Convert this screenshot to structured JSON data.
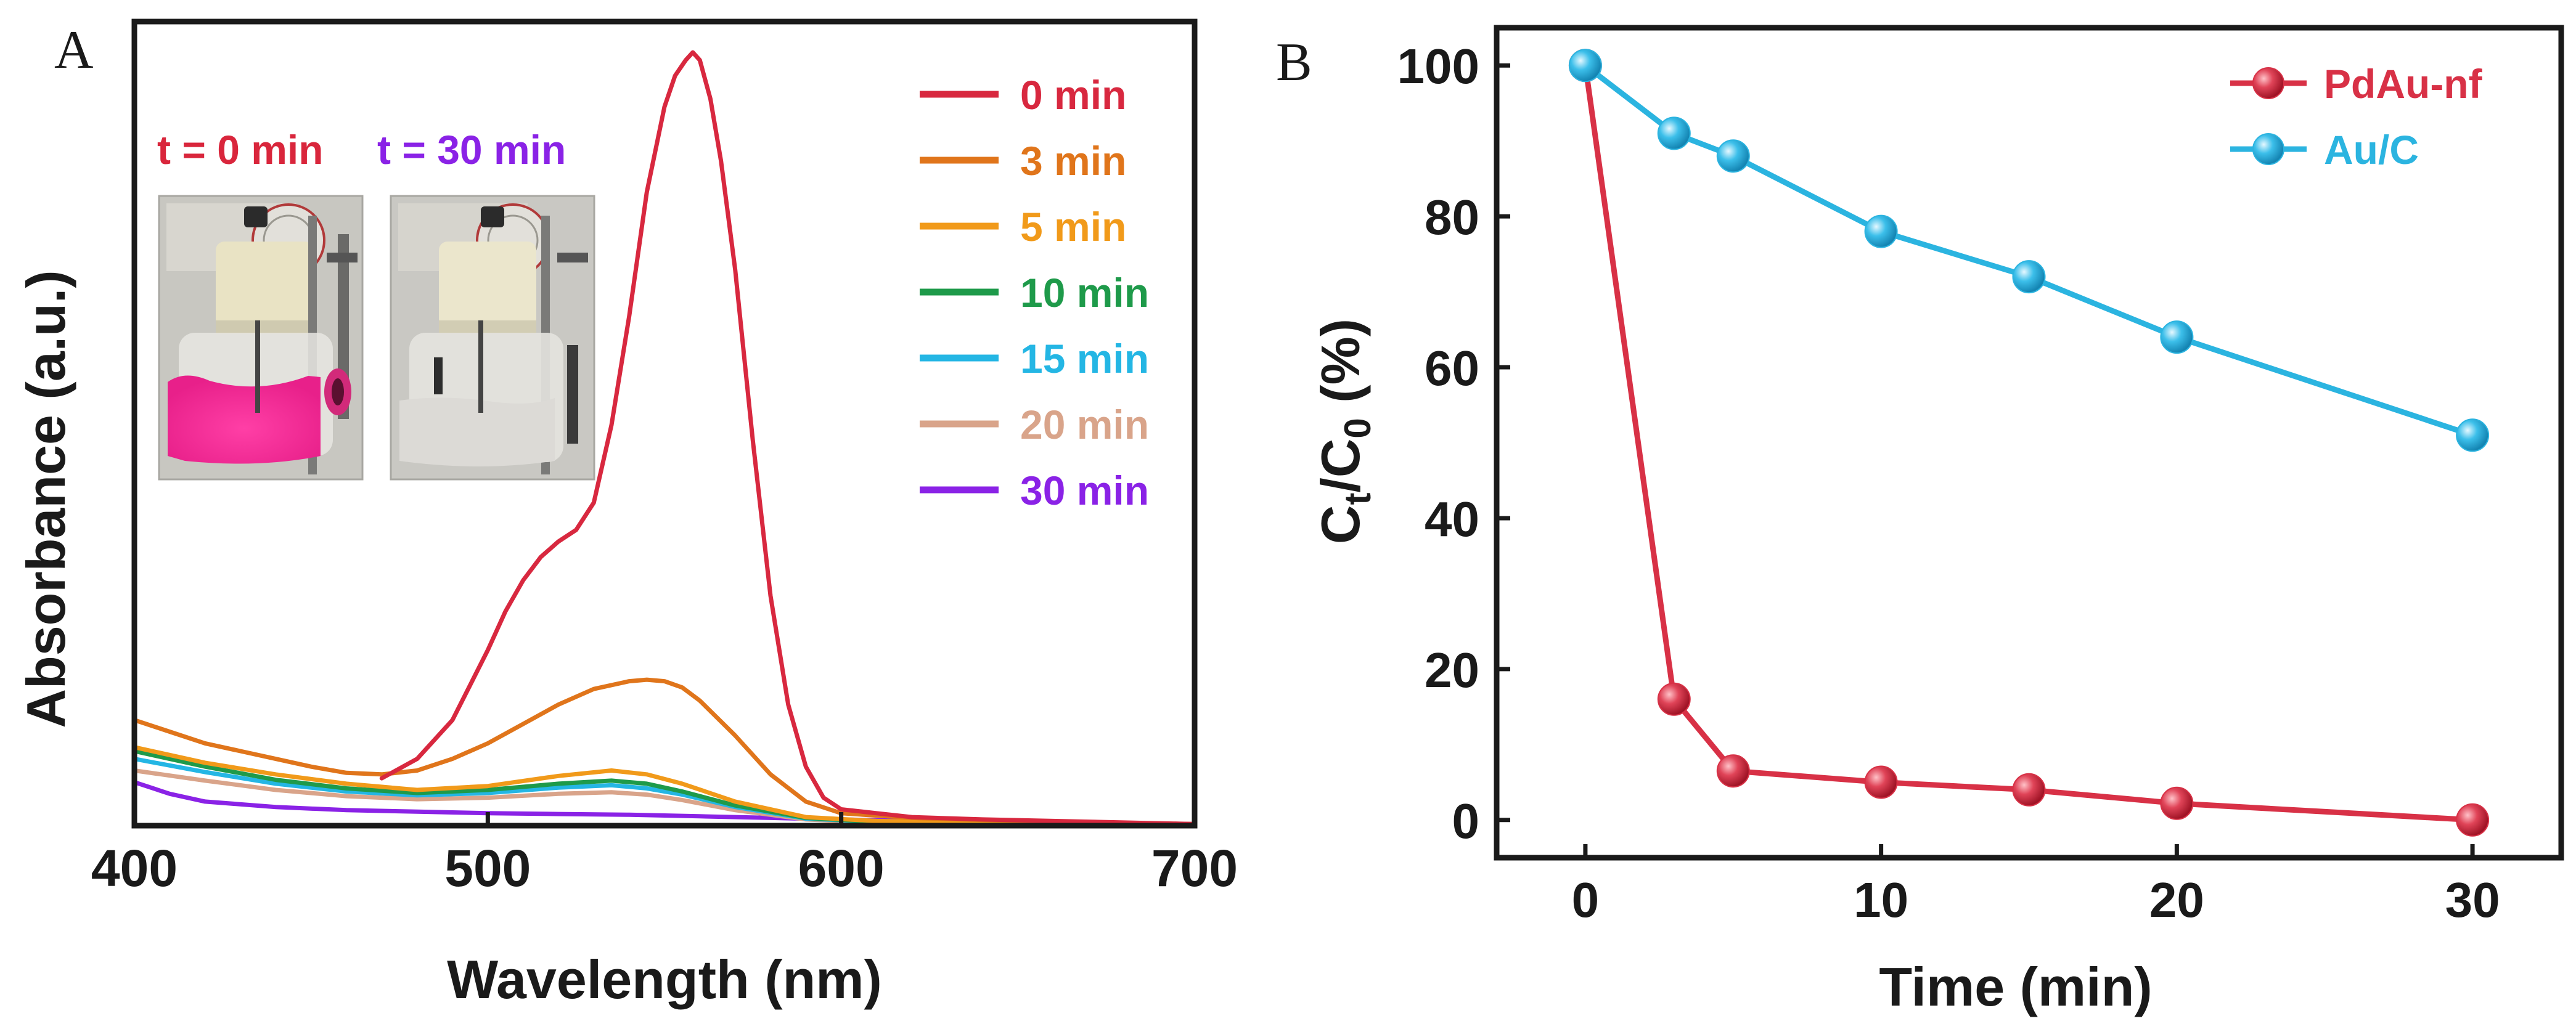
{
  "chart_data": [
    {
      "panel": "A",
      "type": "line",
      "xlabel": "Wavelength (nm)",
      "ylabel": "Absorbance (a.u.)",
      "xlim": [
        400,
        700
      ],
      "ylim": [
        0,
        1.0
      ],
      "xticks": [
        "400",
        "500",
        "600",
        "700"
      ],
      "inset": {
        "labels": [
          "t = 0 min",
          "t = 30 min"
        ],
        "colors": [
          "#d9263c",
          "#8a22e6"
        ]
      },
      "series": [
        {
          "name": "0 min",
          "color": "#d8283f",
          "x": [
            470,
            480,
            490,
            500,
            505,
            510,
            515,
            520,
            525,
            530,
            535,
            540,
            545,
            550,
            553,
            556,
            558,
            560,
            563,
            566,
            570,
            575,
            580,
            585,
            590,
            595,
            600,
            610,
            620,
            640,
            660,
            680,
            700
          ],
          "y": [
            0.065,
            0.09,
            0.14,
            0.23,
            0.28,
            0.32,
            0.35,
            0.37,
            0.385,
            0.42,
            0.52,
            0.66,
            0.82,
            0.93,
            0.97,
            0.99,
            1.0,
            0.99,
            0.94,
            0.86,
            0.72,
            0.5,
            0.3,
            0.16,
            0.08,
            0.04,
            0.025,
            0.02,
            0.015,
            0.012,
            0.01,
            0.008,
            0.006
          ]
        },
        {
          "name": "3 min",
          "color": "#e0751b",
          "x": [
            400,
            410,
            420,
            430,
            440,
            450,
            460,
            470,
            480,
            490,
            500,
            510,
            520,
            530,
            540,
            545,
            550,
            555,
            560,
            570,
            580,
            590,
            600,
            620,
            650,
            700
          ],
          "y": [
            0.14,
            0.125,
            0.11,
            0.1,
            0.09,
            0.08,
            0.072,
            0.07,
            0.075,
            0.09,
            0.11,
            0.135,
            0.16,
            0.18,
            0.19,
            0.192,
            0.19,
            0.182,
            0.165,
            0.12,
            0.07,
            0.035,
            0.02,
            0.014,
            0.01,
            0.006
          ]
        },
        {
          "name": "5 min",
          "color": "#f19a1a",
          "x": [
            400,
            420,
            440,
            460,
            480,
            500,
            520,
            535,
            545,
            555,
            570,
            590,
            610,
            640,
            700
          ],
          "y": [
            0.105,
            0.085,
            0.07,
            0.058,
            0.05,
            0.055,
            0.068,
            0.075,
            0.07,
            0.058,
            0.035,
            0.015,
            0.01,
            0.008,
            0.005
          ]
        },
        {
          "name": "10 min",
          "color": "#1e9a4a",
          "x": [
            400,
            420,
            440,
            460,
            480,
            500,
            520,
            535,
            545,
            555,
            570,
            590,
            610,
            640,
            700
          ],
          "y": [
            0.1,
            0.08,
            0.063,
            0.052,
            0.046,
            0.05,
            0.058,
            0.062,
            0.058,
            0.048,
            0.03,
            0.014,
            0.009,
            0.007,
            0.005
          ]
        },
        {
          "name": "15 min",
          "color": "#24b6e4",
          "x": [
            400,
            420,
            440,
            460,
            480,
            500,
            520,
            535,
            545,
            555,
            570,
            590,
            610,
            640,
            700
          ],
          "y": [
            0.09,
            0.073,
            0.058,
            0.048,
            0.043,
            0.046,
            0.053,
            0.056,
            0.052,
            0.044,
            0.028,
            0.013,
            0.009,
            0.007,
            0.005
          ]
        },
        {
          "name": "20 min",
          "color": "#d9a48a",
          "x": [
            400,
            420,
            440,
            460,
            480,
            500,
            520,
            535,
            545,
            555,
            570,
            590,
            610,
            640,
            700
          ],
          "y": [
            0.075,
            0.062,
            0.05,
            0.042,
            0.038,
            0.04,
            0.045,
            0.047,
            0.044,
            0.037,
            0.024,
            0.012,
            0.008,
            0.006,
            0.005
          ]
        },
        {
          "name": "30 min",
          "color": "#8a22e6",
          "x": [
            400,
            410,
            420,
            440,
            460,
            480,
            500,
            520,
            540,
            560,
            580,
            600,
            620,
            650,
            680,
            700
          ],
          "y": [
            0.06,
            0.045,
            0.035,
            0.028,
            0.024,
            0.022,
            0.02,
            0.019,
            0.018,
            0.016,
            0.014,
            0.012,
            0.01,
            0.008,
            0.007,
            0.006
          ]
        }
      ],
      "legend": "top-right"
    },
    {
      "panel": "B",
      "type": "line",
      "xlabel": "Time (min)",
      "ylabel_main": "C",
      "ylabel_sub1": "t",
      "ylabel_sep": "/C",
      "ylabel_sub2": "0",
      "ylabel_tail": " (%)",
      "xlim": [
        -3,
        33
      ],
      "ylim": [
        -5,
        105
      ],
      "xticks": [
        0,
        10,
        20,
        30
      ],
      "yticks": [
        0,
        20,
        40,
        60,
        80,
        100
      ],
      "series": [
        {
          "name": "PdAu-nf",
          "color": "#d83146",
          "x": [
            0,
            3,
            5,
            10,
            15,
            20,
            30
          ],
          "y": [
            100,
            16,
            6.5,
            5,
            4,
            2.2,
            0
          ]
        },
        {
          "name": "Au/C",
          "color": "#2bb4e0",
          "x": [
            0,
            3,
            5,
            10,
            15,
            20,
            30
          ],
          "y": [
            100,
            91,
            88,
            78,
            72,
            64,
            51
          ]
        }
      ],
      "legend": "top-right"
    }
  ]
}
